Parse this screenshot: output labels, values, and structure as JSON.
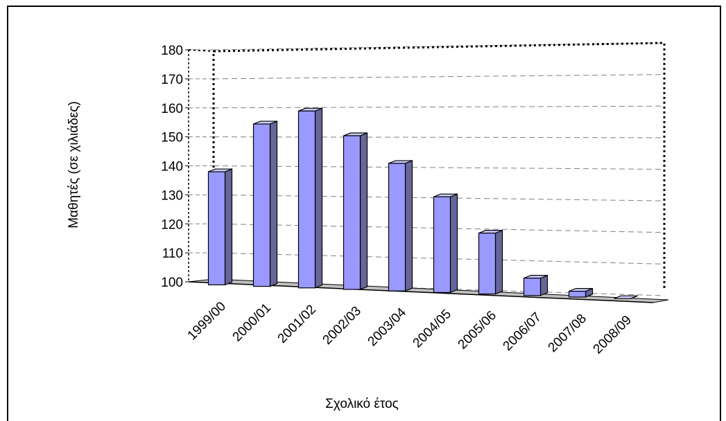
{
  "chart_data": {
    "type": "bar",
    "title": "",
    "xlabel": "Σχολικό έτος",
    "ylabel": "Μαθητές (σε χιλιάδες)",
    "categories": [
      "1999/00",
      "2000/01",
      "2001/02",
      "2002/03",
      "2003/04",
      "2004/05",
      "2005/06",
      "2006/07",
      "2007/08",
      "2008/09"
    ],
    "values": [
      139,
      156,
      161,
      153,
      144,
      133,
      121,
      106,
      102,
      100
    ],
    "ylim": [
      100,
      180
    ],
    "yticks": [
      100,
      110,
      120,
      130,
      140,
      150,
      160,
      170,
      180
    ],
    "grid": true,
    "legend": "none",
    "colors": {
      "bar_front": "#9999ff",
      "bar_side": "#666699",
      "bar_top": "#ccccff",
      "floor": "#c0c0c0",
      "gridline": "#808080"
    }
  }
}
